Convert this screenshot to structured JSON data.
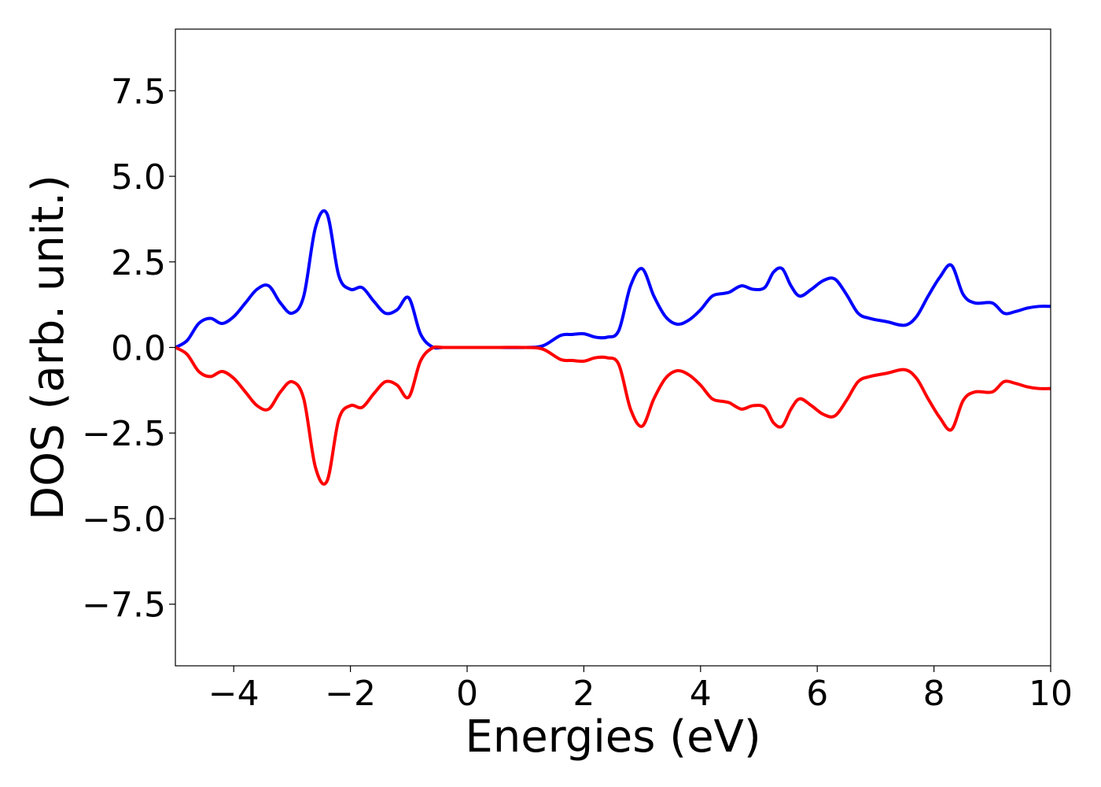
{
  "chart_data": {
    "type": "line",
    "title": "",
    "xlabel": "Energies (eV)",
    "ylabel": "DOS (arb. unit.)",
    "xlim": [
      -5,
      10
    ],
    "ylim": [
      -9.3,
      9.3
    ],
    "xticks": [
      -4,
      -2,
      0,
      2,
      4,
      6,
      8,
      10
    ],
    "xtick_labels": [
      "−4",
      "−2",
      "0",
      "2",
      "4",
      "6",
      "8",
      "10"
    ],
    "yticks": [
      7.5,
      5.0,
      2.5,
      0.0,
      -2.5,
      -5.0,
      -7.5
    ],
    "ytick_labels": [
      "7.5",
      "5.0",
      "2.5",
      "0.0",
      "−2.5",
      "−5.0",
      "−7.5"
    ],
    "grid": false,
    "legend": false,
    "series": [
      {
        "color": "#0000ff",
        "x": [
          -5.0,
          -4.8,
          -4.6,
          -4.4,
          -4.2,
          -4.0,
          -3.8,
          -3.6,
          -3.4,
          -3.2,
          -3.0,
          -2.8,
          -2.6,
          -2.4,
          -2.2,
          -2.0,
          -1.8,
          -1.6,
          -1.4,
          -1.2,
          -1.0,
          -0.8,
          -0.6,
          -0.4,
          0.0,
          0.5,
          1.0,
          1.3,
          1.6,
          1.8,
          2.0,
          2.2,
          2.4,
          2.6,
          2.8,
          3.0,
          3.2,
          3.4,
          3.6,
          3.8,
          4.0,
          4.2,
          4.4,
          4.5,
          4.7,
          4.9,
          5.1,
          5.25,
          5.4,
          5.55,
          5.7,
          5.9,
          6.1,
          6.3,
          6.5,
          6.7,
          6.9,
          7.2,
          7.5,
          7.7,
          7.9,
          8.1,
          8.3,
          8.5,
          8.7,
          9.0,
          9.2,
          9.4,
          9.6,
          9.8,
          10.0
        ],
        "y": [
          0.0,
          0.2,
          0.7,
          0.85,
          0.7,
          0.9,
          1.3,
          1.7,
          1.8,
          1.3,
          1.0,
          1.5,
          3.5,
          3.9,
          2.1,
          1.7,
          1.75,
          1.35,
          1.0,
          1.1,
          1.45,
          0.4,
          0.02,
          0.0,
          0.0,
          0.0,
          0.0,
          0.05,
          0.35,
          0.38,
          0.4,
          0.3,
          0.3,
          0.5,
          1.8,
          2.3,
          1.5,
          0.9,
          0.68,
          0.8,
          1.1,
          1.5,
          1.58,
          1.62,
          1.8,
          1.7,
          1.75,
          2.2,
          2.3,
          1.8,
          1.5,
          1.7,
          1.95,
          2.0,
          1.55,
          1.0,
          0.85,
          0.75,
          0.65,
          0.9,
          1.5,
          2.05,
          2.4,
          1.55,
          1.3,
          1.3,
          1.0,
          1.05,
          1.15,
          1.2,
          1.2
        ]
      },
      {
        "color": "#ff0000",
        "x": [
          -5.0,
          -4.8,
          -4.6,
          -4.4,
          -4.2,
          -4.0,
          -3.8,
          -3.6,
          -3.4,
          -3.2,
          -3.0,
          -2.8,
          -2.6,
          -2.4,
          -2.2,
          -2.0,
          -1.8,
          -1.6,
          -1.4,
          -1.2,
          -1.0,
          -0.8,
          -0.6,
          -0.4,
          0.0,
          0.5,
          1.0,
          1.3,
          1.6,
          1.8,
          2.0,
          2.2,
          2.4,
          2.6,
          2.8,
          3.0,
          3.2,
          3.4,
          3.6,
          3.8,
          4.0,
          4.2,
          4.4,
          4.5,
          4.7,
          4.9,
          5.1,
          5.25,
          5.4,
          5.55,
          5.7,
          5.9,
          6.1,
          6.3,
          6.5,
          6.7,
          6.9,
          7.2,
          7.5,
          7.7,
          7.9,
          8.1,
          8.3,
          8.5,
          8.7,
          9.0,
          9.2,
          9.4,
          9.6,
          9.8,
          10.0
        ],
        "y": [
          0.0,
          -0.2,
          -0.7,
          -0.85,
          -0.7,
          -0.9,
          -1.3,
          -1.7,
          -1.8,
          -1.3,
          -1.0,
          -1.5,
          -3.5,
          -3.9,
          -2.1,
          -1.7,
          -1.75,
          -1.35,
          -1.0,
          -1.1,
          -1.45,
          -0.4,
          -0.02,
          0.0,
          0.0,
          0.0,
          0.0,
          -0.05,
          -0.35,
          -0.38,
          -0.4,
          -0.3,
          -0.3,
          -0.5,
          -1.8,
          -2.3,
          -1.5,
          -0.9,
          -0.68,
          -0.8,
          -1.1,
          -1.5,
          -1.58,
          -1.62,
          -1.8,
          -1.7,
          -1.75,
          -2.2,
          -2.3,
          -1.8,
          -1.5,
          -1.7,
          -1.95,
          -2.0,
          -1.55,
          -1.0,
          -0.85,
          -0.75,
          -0.65,
          -0.9,
          -1.5,
          -2.05,
          -2.4,
          -1.55,
          -1.3,
          -1.3,
          -1.0,
          -1.05,
          -1.15,
          -1.2,
          -1.2
        ]
      }
    ]
  }
}
